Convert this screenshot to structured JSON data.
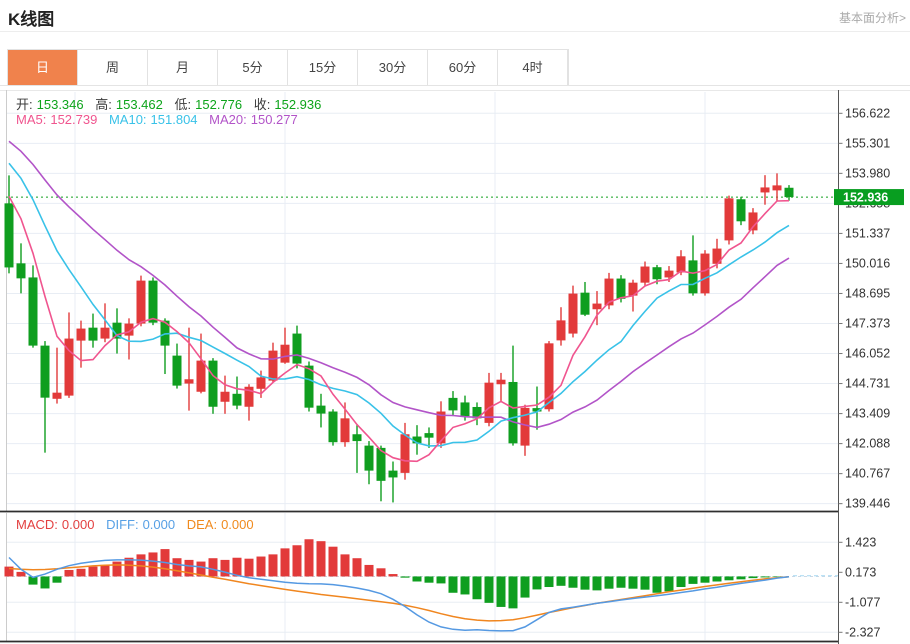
{
  "header": {
    "title": "K线图",
    "link": "基本面分析>"
  },
  "tabs": {
    "items": [
      {
        "label": "日",
        "active": true
      },
      {
        "label": "周",
        "active": false
      },
      {
        "label": "月",
        "active": false
      },
      {
        "label": "5分",
        "active": false
      },
      {
        "label": "15分",
        "active": false
      },
      {
        "label": "30分",
        "active": false
      },
      {
        "label": "60分",
        "active": false
      },
      {
        "label": "4时",
        "active": false
      }
    ]
  },
  "ohlc": {
    "open_label": "开:",
    "open": "153.346",
    "high_label": "高:",
    "high": "153.462",
    "low_label": "低:",
    "low": "152.776",
    "close_label": "收:",
    "close": "152.936"
  },
  "ma_legend": {
    "ma5_label": "MA5:",
    "ma5": "152.739",
    "ma10_label": "MA10:",
    "ma10": "151.804",
    "ma20_label": "MA20:",
    "ma20": "150.277"
  },
  "macd_legend": {
    "macd_label": "MACD:",
    "macd": "0.000",
    "diff_label": "DIFF:",
    "diff": "0.000",
    "dea_label": "DEA:",
    "dea": "0.000"
  },
  "price_axis": {
    "ticks": [
      "156.622",
      "155.301",
      "153.980",
      "152.658",
      "151.337",
      "150.016",
      "148.695",
      "147.373",
      "146.052",
      "144.731",
      "143.409",
      "142.088",
      "140.767",
      "139.446"
    ],
    "current_badge": "152.936"
  },
  "macd_axis": {
    "ticks": [
      "1.423",
      "0.173",
      "-1.077",
      "-2.327"
    ]
  },
  "colors": {
    "up": "#e23a3a",
    "down": "#0f9e1f",
    "ma5": "#f0558f",
    "ma10": "#39c2e8",
    "ma20": "#b254c8",
    "diff": "#5599e2",
    "dea": "#f0861f",
    "badge_bg": "#089e20",
    "current_line": "#11a01c",
    "tab_active_bg": "#f0824c",
    "axis_text": "#333333",
    "grid": "#e8edf4",
    "border_dark": "#2f2f2f",
    "axis_line": "#555555"
  },
  "chart_data": {
    "type": "candlestick+macd",
    "price_panel": {
      "title": "K线图 日线",
      "axis_tick_values": [
        156.622,
        155.301,
        153.98,
        152.658,
        151.337,
        150.016,
        148.695,
        147.373,
        146.052,
        144.731,
        143.409,
        142.088,
        140.767,
        139.446
      ],
      "current_price": 152.936,
      "candle_format": "[open,high,low,close]",
      "candles": [
        [
          152.66,
          153.89,
          149.58,
          149.84
        ],
        [
          150.02,
          150.9,
          148.7,
          149.36
        ],
        [
          149.4,
          149.93,
          146.31,
          146.4
        ],
        [
          146.4,
          146.6,
          141.69,
          144.11
        ],
        [
          144.06,
          146.31,
          143.85,
          144.33
        ],
        [
          144.2,
          147.86,
          144.1,
          146.71
        ],
        [
          146.62,
          147.5,
          145.43,
          147.15
        ],
        [
          147.19,
          147.81,
          146.31,
          146.62
        ],
        [
          146.71,
          148.26,
          146.55,
          147.19
        ],
        [
          147.41,
          148.04,
          146.05,
          146.71
        ],
        [
          146.84,
          147.6,
          145.79,
          147.37
        ],
        [
          147.37,
          149.48,
          147.25,
          149.26
        ],
        [
          149.26,
          149.4,
          147.3,
          147.41
        ],
        [
          147.5,
          147.6,
          145.15,
          146.4
        ],
        [
          145.96,
          146.49,
          144.51,
          144.64
        ],
        [
          144.73,
          147.19,
          143.54,
          144.92
        ],
        [
          144.37,
          146.93,
          144.3,
          145.74
        ],
        [
          145.74,
          145.85,
          143.4,
          143.71
        ],
        [
          143.93,
          145.08,
          143.4,
          144.37
        ],
        [
          144.28,
          145.04,
          143.6,
          143.76
        ],
        [
          143.71,
          144.7,
          143.1,
          144.59
        ],
        [
          144.5,
          145.3,
          144.1,
          145.0
        ],
        [
          144.86,
          146.53,
          144.8,
          146.18
        ],
        [
          145.65,
          147.19,
          145.6,
          146.44
        ],
        [
          146.93,
          147.28,
          145.4,
          145.61
        ],
        [
          145.52,
          145.7,
          143.5,
          143.67
        ],
        [
          143.76,
          144.28,
          142.8,
          143.41
        ],
        [
          143.5,
          143.6,
          142.0,
          142.15
        ],
        [
          142.15,
          143.9,
          141.95,
          143.2
        ],
        [
          142.5,
          142.9,
          140.8,
          142.2
        ],
        [
          142.0,
          142.2,
          140.3,
          140.9
        ],
        [
          141.9,
          142.0,
          139.55,
          140.45
        ],
        [
          140.9,
          141.3,
          139.5,
          140.6
        ],
        [
          140.8,
          143.0,
          140.5,
          142.5
        ],
        [
          142.4,
          142.9,
          141.6,
          142.1
        ],
        [
          142.55,
          142.8,
          141.9,
          142.35
        ],
        [
          142.1,
          143.95,
          141.9,
          143.5
        ],
        [
          144.1,
          144.4,
          143.3,
          143.55
        ],
        [
          143.9,
          144.2,
          143.1,
          143.3
        ],
        [
          143.7,
          143.9,
          142.9,
          143.2
        ],
        [
          143.0,
          145.2,
          142.85,
          144.77
        ],
        [
          144.7,
          145.2,
          143.9,
          144.9
        ],
        [
          144.8,
          146.4,
          142.0,
          142.1
        ],
        [
          142.0,
          143.8,
          141.55,
          143.66
        ],
        [
          143.65,
          144.6,
          142.7,
          143.5
        ],
        [
          143.6,
          146.6,
          143.5,
          146.5
        ],
        [
          146.63,
          148.09,
          146.4,
          147.51
        ],
        [
          146.93,
          149.04,
          146.76,
          148.69
        ],
        [
          148.73,
          149.2,
          147.7,
          147.76
        ],
        [
          148.0,
          148.8,
          147.3,
          148.25
        ],
        [
          148.17,
          149.6,
          148.0,
          149.35
        ],
        [
          149.35,
          149.5,
          148.3,
          148.46
        ],
        [
          148.6,
          149.3,
          147.9,
          149.17
        ],
        [
          149.17,
          150.1,
          149.0,
          149.88
        ],
        [
          149.85,
          149.95,
          149.1,
          149.32
        ],
        [
          149.4,
          149.9,
          149.2,
          149.7
        ],
        [
          149.62,
          150.6,
          149.5,
          150.33
        ],
        [
          150.15,
          151.25,
          148.6,
          148.7
        ],
        [
          148.7,
          150.6,
          148.6,
          150.45
        ],
        [
          150.0,
          151.1,
          149.8,
          150.67
        ],
        [
          151.03,
          153.0,
          150.85,
          152.88
        ],
        [
          152.84,
          152.95,
          151.7,
          151.87
        ],
        [
          151.47,
          152.45,
          151.3,
          152.26
        ],
        [
          153.14,
          153.9,
          152.6,
          153.36
        ],
        [
          153.23,
          153.98,
          152.75,
          153.45
        ],
        [
          153.346,
          153.462,
          152.776,
          152.936
        ]
      ],
      "ma_windows": {
        "ma5": 5,
        "ma10": 10,
        "ma20": 20
      },
      "ma_prehistory_estimated": {
        "ma5": [
          154.3,
          154.0,
          153.6,
          153.1
        ],
        "ma10": [
          156.0,
          155.8,
          155.6,
          155.3,
          155.0,
          154.7,
          154.4,
          154.0,
          153.6
        ],
        "ma20": [
          158.2,
          158.0,
          157.8,
          157.5,
          157.2,
          156.9,
          156.6,
          156.3,
          156.0,
          155.7,
          155.4,
          155.1,
          154.8,
          154.5,
          154.2,
          153.9,
          153.6,
          153.3,
          153.0
        ]
      },
      "ma_end_values": {
        "ma5": 152.739,
        "ma10": 151.804,
        "ma20": 150.277
      }
    },
    "macd_panel": {
      "axis_tick_values": [
        1.423,
        0.173,
        -1.077,
        -2.327
      ],
      "macd": 0.0,
      "diff_end": 0.0,
      "dea_end": 0.0,
      "hist": [
        0.41,
        0.19,
        -0.34,
        -0.5,
        -0.26,
        0.27,
        0.32,
        0.41,
        0.48,
        0.62,
        0.78,
        0.92,
        1.0,
        1.14,
        0.76,
        0.69,
        0.62,
        0.76,
        0.69,
        0.78,
        0.74,
        0.83,
        0.92,
        1.17,
        1.3,
        1.55,
        1.47,
        1.24,
        0.92,
        0.76,
        0.48,
        0.34,
        0.1,
        -0.05,
        -0.21,
        -0.26,
        -0.29,
        -0.68,
        -0.75,
        -0.95,
        -1.1,
        -1.27,
        -1.33,
        -0.88,
        -0.54,
        -0.44,
        -0.39,
        -0.47,
        -0.55,
        -0.58,
        -0.51,
        -0.47,
        -0.51,
        -0.55,
        -0.68,
        -0.62,
        -0.44,
        -0.31,
        -0.26,
        -0.21,
        -0.16,
        -0.12,
        -0.07,
        -0.04,
        -0.02,
        -0.01
      ],
      "diff": [
        0.79,
        0.3,
        -0.04,
        0.1,
        0.3,
        0.45,
        0.55,
        0.62,
        0.67,
        0.69,
        0.69,
        0.68,
        0.64,
        0.58,
        0.5,
        0.44,
        0.4,
        0.3,
        0.18,
        0.05,
        -0.05,
        -0.12,
        -0.18,
        -0.24,
        -0.28,
        -0.3,
        -0.31,
        -0.34,
        -0.4,
        -0.48,
        -0.58,
        -0.72,
        -0.95,
        -1.25,
        -1.6,
        -1.9,
        -2.1,
        -2.2,
        -2.24,
        -2.22,
        -2.25,
        -2.27,
        -2.26,
        -2.1,
        -1.8,
        -1.5,
        -1.35,
        -1.28,
        -1.2,
        -1.12,
        -1.05,
        -0.98,
        -0.92,
        -0.86,
        -0.8,
        -0.74,
        -0.67,
        -0.6,
        -0.52,
        -0.45,
        -0.37,
        -0.29,
        -0.22,
        -0.15,
        -0.07,
        -0.01
      ],
      "dea": [
        0.33,
        0.3,
        0.28,
        0.29,
        0.32,
        0.36,
        0.4,
        0.44,
        0.47,
        0.48,
        0.47,
        0.44,
        0.39,
        0.32,
        0.24,
        0.15,
        0.06,
        -0.03,
        -0.12,
        -0.21,
        -0.3,
        -0.38,
        -0.46,
        -0.54,
        -0.61,
        -0.68,
        -0.75,
        -0.81,
        -0.87,
        -0.93,
        -0.99,
        -1.05,
        -1.12,
        -1.2,
        -1.3,
        -1.42,
        -1.55,
        -1.67,
        -1.76,
        -1.82,
        -1.85,
        -1.84,
        -1.8,
        -1.72,
        -1.61,
        -1.5,
        -1.4,
        -1.3,
        -1.21,
        -1.12,
        -1.04,
        -0.96,
        -0.88,
        -0.8,
        -0.72,
        -0.64,
        -0.57,
        -0.49,
        -0.42,
        -0.35,
        -0.28,
        -0.22,
        -0.16,
        -0.1,
        -0.05,
        -0.01
      ]
    }
  }
}
